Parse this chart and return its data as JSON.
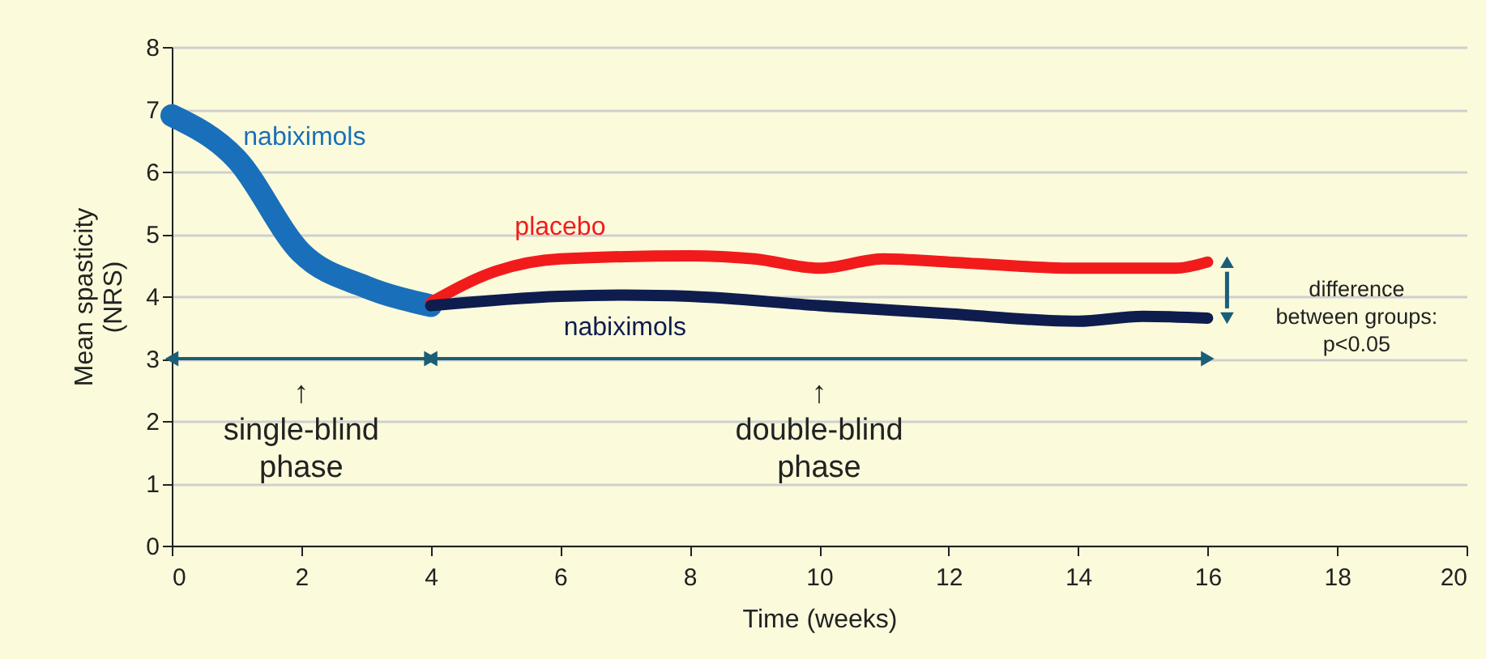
{
  "chart_data": {
    "type": "line",
    "xlabel": "Time (weeks)",
    "ylabel": "Mean spasticity (NRS)",
    "xlim": [
      0,
      20
    ],
    "xticks": [
      0,
      2,
      4,
      6,
      8,
      10,
      12,
      14,
      16,
      18,
      20
    ],
    "ylim": [
      0,
      8
    ],
    "yticks": [
      0,
      1,
      2,
      3,
      4,
      5,
      6,
      7,
      8
    ],
    "grid": "y",
    "line_style": "solid",
    "series": [
      {
        "name": "nabiximols",
        "color": "#1a6fba",
        "x": [
          0,
          1,
          2,
          3,
          4
        ],
        "values": [
          6.9,
          6.2,
          4.7,
          4.15,
          3.85
        ]
      },
      {
        "name": "placebo",
        "color": "#f21b1b",
        "x": [
          4,
          5,
          6,
          8,
          9,
          10,
          11,
          12,
          14,
          15.5,
          16
        ],
        "values": [
          3.9,
          4.4,
          4.6,
          4.65,
          4.6,
          4.45,
          4.6,
          4.55,
          4.45,
          4.45,
          4.55
        ]
      },
      {
        "name": "nabiximols",
        "color": "#0e1d4d",
        "x": [
          4,
          6,
          7,
          8,
          10,
          12,
          14,
          15,
          16
        ],
        "values": [
          3.85,
          4.0,
          4.02,
          4.0,
          3.85,
          3.72,
          3.6,
          3.68,
          3.65
        ]
      }
    ],
    "annotations": [
      "↑ single-blind phase",
      "↑ double-blind phase",
      "difference between groups: p<0.05"
    ]
  }
}
